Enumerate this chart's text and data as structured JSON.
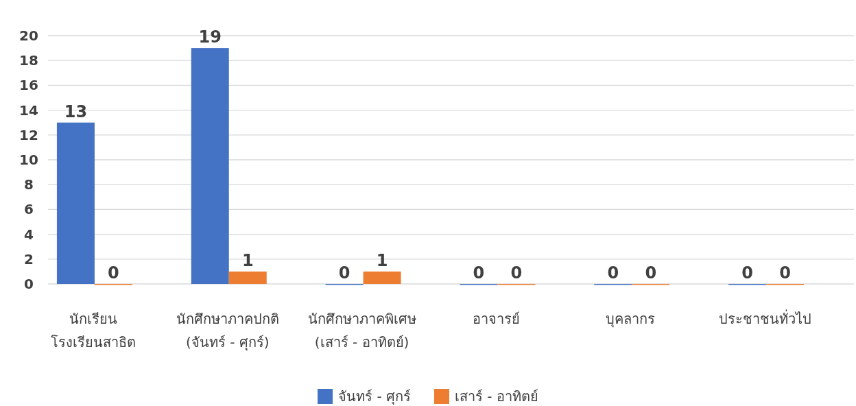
{
  "chart_data": {
    "type": "bar",
    "categories": [
      "นักเรียน โรงเรียนสาธิต",
      "นักศึกษาภาคปกติ (จันทร์ - ศุกร์)",
      "นักศึกษาภาคพิเศษ (เสาร์ - อาทิตย์)",
      "อาจารย์",
      "บุคลากร",
      "ประชาชนทั่วไป"
    ],
    "series": [
      {
        "name": "จันทร์ - ศุกร์",
        "color": "#4472c4",
        "values": [
          13,
          19,
          0,
          0,
          0,
          0
        ]
      },
      {
        "name": "เสาร์ - อาทิตย์",
        "color": "#ed7d31",
        "values": [
          0,
          1,
          1,
          0,
          0,
          0
        ]
      }
    ],
    "ylim": [
      0,
      20
    ],
    "yticks": [
      0,
      2,
      4,
      6,
      8,
      10,
      12,
      14,
      16,
      18,
      20
    ],
    "grid": "y",
    "legend": "bottom",
    "data_labels": true
  }
}
